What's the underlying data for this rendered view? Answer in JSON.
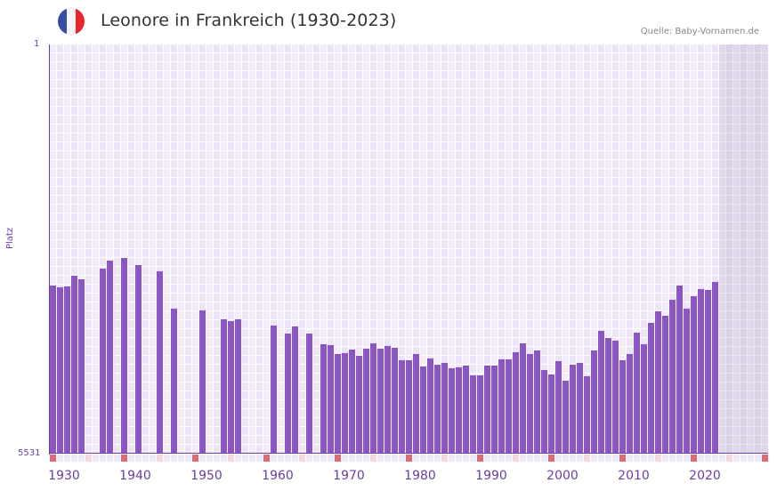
{
  "header": {
    "title": "Leonore in Frankreich (1930-2023)",
    "source": "Quelle: Baby-Vornamen.de",
    "flag_colors": [
      "#3451a1",
      "#f5f5f5",
      "#e8262b"
    ]
  },
  "colors": {
    "bar": "#8b55c6",
    "axis": "#6b3fa0",
    "grid_a": "#f1edfa",
    "grid_b": "#ebe5f7",
    "marker_decade": "#e06b78",
    "marker_half": "#f4d6de",
    "marker_other": "#eeeaf8"
  },
  "chart_data": {
    "type": "bar",
    "title": "Leonore in Frankreich (1930-2023)",
    "xlabel": "",
    "ylabel": "Platz",
    "y_inverted": true,
    "ylim": [
      1,
      5531
    ],
    "y_ticks": [
      "1",
      "5531"
    ],
    "x_ticks": [
      "1930",
      "1940",
      "1950",
      "1960",
      "1970",
      "1980",
      "1990",
      "2000",
      "2010",
      "2020"
    ],
    "x_range": [
      1930,
      2030
    ],
    "grid": true,
    "legend": null,
    "source": "Quelle: Baby-Vornamen.de",
    "points": [
      {
        "year": 1930,
        "rank": 3259
      },
      {
        "year": 1931,
        "rank": 3283
      },
      {
        "year": 1932,
        "rank": 3271
      },
      {
        "year": 1933,
        "rank": 3127
      },
      {
        "year": 1934,
        "rank": 3175
      },
      {
        "year": 1937,
        "rank": 3031
      },
      {
        "year": 1938,
        "rank": 2922
      },
      {
        "year": 1940,
        "rank": 2886
      },
      {
        "year": 1942,
        "rank": 2982
      },
      {
        "year": 1945,
        "rank": 3067
      },
      {
        "year": 1947,
        "rank": 3571
      },
      {
        "year": 1951,
        "rank": 3595
      },
      {
        "year": 1954,
        "rank": 3716
      },
      {
        "year": 1955,
        "rank": 3740
      },
      {
        "year": 1956,
        "rank": 3716
      },
      {
        "year": 1961,
        "rank": 3800
      },
      {
        "year": 1963,
        "rank": 3908
      },
      {
        "year": 1964,
        "rank": 3812
      },
      {
        "year": 1966,
        "rank": 3908
      },
      {
        "year": 1968,
        "rank": 4052
      },
      {
        "year": 1969,
        "rank": 4064
      },
      {
        "year": 1970,
        "rank": 4185
      },
      {
        "year": 1971,
        "rank": 4173
      },
      {
        "year": 1972,
        "rank": 4125
      },
      {
        "year": 1973,
        "rank": 4209
      },
      {
        "year": 1974,
        "rank": 4113
      },
      {
        "year": 1975,
        "rank": 4040
      },
      {
        "year": 1976,
        "rank": 4113
      },
      {
        "year": 1977,
        "rank": 4077
      },
      {
        "year": 1978,
        "rank": 4101
      },
      {
        "year": 1979,
        "rank": 4269
      },
      {
        "year": 1980,
        "rank": 4269
      },
      {
        "year": 1981,
        "rank": 4185
      },
      {
        "year": 1982,
        "rank": 4353
      },
      {
        "year": 1983,
        "rank": 4245
      },
      {
        "year": 1984,
        "rank": 4329
      },
      {
        "year": 1985,
        "rank": 4305
      },
      {
        "year": 1986,
        "rank": 4377
      },
      {
        "year": 1987,
        "rank": 4365
      },
      {
        "year": 1988,
        "rank": 4341
      },
      {
        "year": 1989,
        "rank": 4473
      },
      {
        "year": 1990,
        "rank": 4473
      },
      {
        "year": 1991,
        "rank": 4341
      },
      {
        "year": 1992,
        "rank": 4341
      },
      {
        "year": 1993,
        "rank": 4257
      },
      {
        "year": 1994,
        "rank": 4257
      },
      {
        "year": 1995,
        "rank": 4161
      },
      {
        "year": 1996,
        "rank": 4040
      },
      {
        "year": 1997,
        "rank": 4185
      },
      {
        "year": 1998,
        "rank": 4137
      },
      {
        "year": 1999,
        "rank": 4401
      },
      {
        "year": 2000,
        "rank": 4461
      },
      {
        "year": 2001,
        "rank": 4281
      },
      {
        "year": 2002,
        "rank": 4546
      },
      {
        "year": 2003,
        "rank": 4329
      },
      {
        "year": 2004,
        "rank": 4305
      },
      {
        "year": 2005,
        "rank": 4485
      },
      {
        "year": 2006,
        "rank": 4137
      },
      {
        "year": 2007,
        "rank": 3872
      },
      {
        "year": 2008,
        "rank": 3968
      },
      {
        "year": 2009,
        "rank": 4004
      },
      {
        "year": 2010,
        "rank": 4269
      },
      {
        "year": 2011,
        "rank": 4185
      },
      {
        "year": 2012,
        "rank": 3896
      },
      {
        "year": 2013,
        "rank": 4052
      },
      {
        "year": 2014,
        "rank": 3764
      },
      {
        "year": 2015,
        "rank": 3608
      },
      {
        "year": 2016,
        "rank": 3668
      },
      {
        "year": 2017,
        "rank": 3451
      },
      {
        "year": 2018,
        "rank": 3259
      },
      {
        "year": 2019,
        "rank": 3571
      },
      {
        "year": 2020,
        "rank": 3403
      },
      {
        "year": 2021,
        "rank": 3307
      },
      {
        "year": 2022,
        "rank": 3319
      },
      {
        "year": 2023,
        "rank": 3211
      }
    ],
    "future_shaded_from": 2024
  }
}
